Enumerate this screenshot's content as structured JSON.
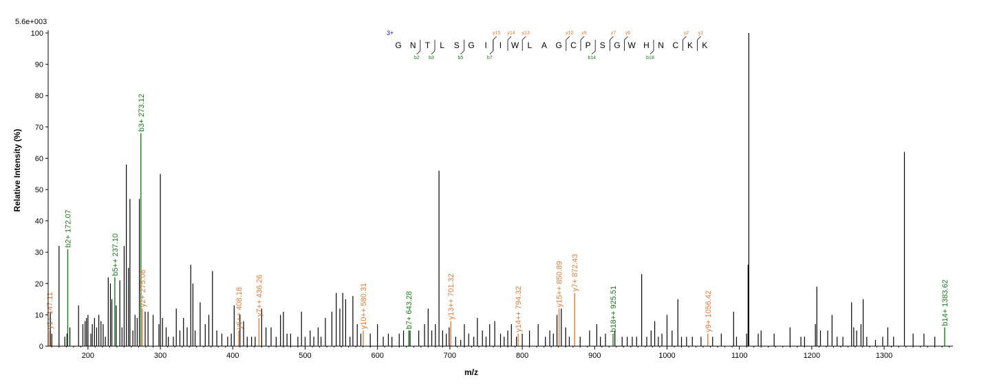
{
  "chart_data": {
    "type": "bar",
    "scale_label": "5.6e+003",
    "xlabel": "m/z",
    "ylabel": "Relative   Intensity (%)",
    "xlim": [
      145,
      1395
    ],
    "ylim": [
      0,
      100
    ],
    "x_ticks": [
      200,
      300,
      400,
      500,
      600,
      700,
      800,
      900,
      1000,
      1100,
      1200,
      1300
    ],
    "y_ticks": [
      0,
      10,
      20,
      30,
      40,
      50,
      60,
      70,
      80,
      90,
      100
    ],
    "colors": {
      "b_ion": "#1a7a1a",
      "y_ion": "#e07b39",
      "unannotated": "#000000",
      "charge": "#1010a0"
    },
    "peptide": {
      "charge": "3+",
      "sequence": [
        "G",
        "N",
        "T",
        "L",
        "S",
        "G",
        "I",
        "I",
        "W",
        "L",
        "A",
        "G",
        "C",
        "P",
        "S",
        "G",
        "W",
        "H",
        "N",
        "C",
        "K",
        "K"
      ],
      "b_marks": [
        {
          "label": "b2",
          "after": 2
        },
        {
          "label": "b3",
          "after": 3
        },
        {
          "label": "b5",
          "after": 5
        },
        {
          "label": "b7",
          "after": 7
        },
        {
          "label": "b14",
          "after": 14
        },
        {
          "label": "b18",
          "after": 18
        }
      ],
      "y_marks": [
        {
          "label": "y15",
          "after": 7
        },
        {
          "label": "y14",
          "after": 8
        },
        {
          "label": "y13",
          "after": 9
        },
        {
          "label": "y10",
          "after": 12
        },
        {
          "label": "y9",
          "after": 13
        },
        {
          "label": "y7",
          "after": 15
        },
        {
          "label": "y6",
          "after": 16
        },
        {
          "label": "y2",
          "after": 20
        },
        {
          "label": "y1",
          "after": 21
        }
      ]
    },
    "annotated_peaks": [
      {
        "mz": 147.11,
        "intensity": 5,
        "ion": "y",
        "label": "y1+ 147.11"
      },
      {
        "mz": 172.07,
        "intensity": 31,
        "ion": "b",
        "label": "b2+ 172.07"
      },
      {
        "mz": 237.1,
        "intensity": 22,
        "ion": "b",
        "label": "b5++ 237.10"
      },
      {
        "mz": 273.12,
        "intensity": 68,
        "ion": "b",
        "label": "b3+ 273.12"
      },
      {
        "mz": 275.08,
        "intensity": 12,
        "ion": "y",
        "label": "y2+ 275.08"
      },
      {
        "mz": 408.18,
        "intensity": 5,
        "ion": "y",
        "label": "y6++ 408.18"
      },
      {
        "mz": 436.26,
        "intensity": 9,
        "ion": "y",
        "label": "y7++ 436.26"
      },
      {
        "mz": 580.31,
        "intensity": 5,
        "ion": "y",
        "label": "y10++ 580.31"
      },
      {
        "mz": 643.28,
        "intensity": 5,
        "ion": "b",
        "label": "b7+ 643.28"
      },
      {
        "mz": 701.32,
        "intensity": 8,
        "ion": "y",
        "label": "y13++ 701.32"
      },
      {
        "mz": 794.32,
        "intensity": 4,
        "ion": "y",
        "label": "y14++ 794.32"
      },
      {
        "mz": 850.89,
        "intensity": 12,
        "ion": "y",
        "label": "y15++ 850.89"
      },
      {
        "mz": 872.43,
        "intensity": 17,
        "ion": "y",
        "label": "y7+ 872.43"
      },
      {
        "mz": 925.51,
        "intensity": 4,
        "ion": "b",
        "label": "b18++ 925.51"
      },
      {
        "mz": 1056.42,
        "intensity": 4,
        "ion": "y",
        "label": "y9+ 1056.42"
      },
      {
        "mz": 1383.62,
        "intensity": 6,
        "ion": "b",
        "label": "b14+ 1383.62"
      }
    ],
    "peaks": [
      [
        148,
        11
      ],
      [
        150,
        4
      ],
      [
        160,
        32
      ],
      [
        168,
        3
      ],
      [
        171,
        4
      ],
      [
        175,
        6
      ],
      [
        187,
        13
      ],
      [
        193,
        7
      ],
      [
        196,
        8
      ],
      [
        198,
        9
      ],
      [
        200,
        10
      ],
      [
        204,
        4
      ],
      [
        206,
        7
      ],
      [
        209,
        9
      ],
      [
        212,
        6
      ],
      [
        215,
        10
      ],
      [
        218,
        8
      ],
      [
        221,
        7
      ],
      [
        224,
        3
      ],
      [
        228,
        22
      ],
      [
        231,
        20
      ],
      [
        233,
        15
      ],
      [
        239,
        13
      ],
      [
        244,
        21
      ],
      [
        247,
        6
      ],
      [
        250,
        32
      ],
      [
        253,
        58
      ],
      [
        256,
        25
      ],
      [
        258,
        47
      ],
      [
        262,
        5
      ],
      [
        265,
        10
      ],
      [
        268,
        9
      ],
      [
        271,
        47
      ],
      [
        279,
        11
      ],
      [
        283,
        11
      ],
      [
        290,
        10
      ],
      [
        298,
        7
      ],
      [
        300,
        55
      ],
      [
        303,
        9
      ],
      [
        308,
        6
      ],
      [
        311,
        3
      ],
      [
        318,
        3
      ],
      [
        322,
        12
      ],
      [
        327,
        5
      ],
      [
        332,
        9
      ],
      [
        337,
        6
      ],
      [
        342,
        26
      ],
      [
        345,
        20
      ],
      [
        348,
        5
      ],
      [
        355,
        14
      ],
      [
        362,
        7
      ],
      [
        367,
        10
      ],
      [
        372,
        24
      ],
      [
        378,
        5
      ],
      [
        385,
        4
      ],
      [
        393,
        3
      ],
      [
        398,
        4
      ],
      [
        402,
        13
      ],
      [
        410,
        10
      ],
      [
        415,
        8
      ],
      [
        420,
        3
      ],
      [
        426,
        3
      ],
      [
        431,
        3
      ],
      [
        440,
        12
      ],
      [
        446,
        6
      ],
      [
        453,
        6
      ],
      [
        460,
        3
      ],
      [
        466,
        10
      ],
      [
        470,
        11
      ],
      [
        475,
        4
      ],
      [
        480,
        4
      ],
      [
        490,
        3
      ],
      [
        495,
        11
      ],
      [
        500,
        3
      ],
      [
        507,
        5
      ],
      [
        512,
        3
      ],
      [
        518,
        6
      ],
      [
        522,
        3
      ],
      [
        528,
        9
      ],
      [
        537,
        11
      ],
      [
        543,
        17
      ],
      [
        548,
        12
      ],
      [
        552,
        17
      ],
      [
        556,
        15
      ],
      [
        562,
        3
      ],
      [
        566,
        16
      ],
      [
        572,
        7
      ],
      [
        577,
        4
      ],
      [
        590,
        4
      ],
      [
        600,
        7
      ],
      [
        608,
        3
      ],
      [
        615,
        4
      ],
      [
        620,
        3
      ],
      [
        630,
        4
      ],
      [
        636,
        5
      ],
      [
        645,
        5
      ],
      [
        657,
        5
      ],
      [
        665,
        7
      ],
      [
        670,
        12
      ],
      [
        675,
        5
      ],
      [
        680,
        7
      ],
      [
        685,
        56
      ],
      [
        690,
        5
      ],
      [
        695,
        4
      ],
      [
        699,
        6
      ],
      [
        708,
        3
      ],
      [
        715,
        2
      ],
      [
        720,
        7
      ],
      [
        726,
        4
      ],
      [
        733,
        3
      ],
      [
        738,
        9
      ],
      [
        745,
        5
      ],
      [
        750,
        3
      ],
      [
        755,
        7
      ],
      [
        762,
        8
      ],
      [
        770,
        4
      ],
      [
        775,
        3
      ],
      [
        780,
        5
      ],
      [
        785,
        7
      ],
      [
        792,
        3
      ],
      [
        800,
        4
      ],
      [
        810,
        5
      ],
      [
        822,
        7
      ],
      [
        832,
        3
      ],
      [
        838,
        5
      ],
      [
        843,
        4
      ],
      [
        848,
        10
      ],
      [
        854,
        12
      ],
      [
        860,
        6
      ],
      [
        865,
        3
      ],
      [
        880,
        3
      ],
      [
        893,
        5
      ],
      [
        903,
        7
      ],
      [
        908,
        3
      ],
      [
        915,
        4
      ],
      [
        928,
        5
      ],
      [
        938,
        3
      ],
      [
        945,
        3
      ],
      [
        952,
        3
      ],
      [
        958,
        3
      ],
      [
        965,
        23
      ],
      [
        972,
        3
      ],
      [
        978,
        5
      ],
      [
        983,
        8
      ],
      [
        988,
        3
      ],
      [
        993,
        4
      ],
      [
        1000,
        10
      ],
      [
        1007,
        5
      ],
      [
        1015,
        15
      ],
      [
        1020,
        3
      ],
      [
        1027,
        3
      ],
      [
        1035,
        3
      ],
      [
        1047,
        3
      ],
      [
        1063,
        3
      ],
      [
        1075,
        4
      ],
      [
        1092,
        11
      ],
      [
        1096,
        3
      ],
      [
        1110,
        4
      ],
      [
        1112,
        26
      ],
      [
        1113,
        100
      ],
      [
        1126,
        4
      ],
      [
        1130,
        5
      ],
      [
        1148,
        4
      ],
      [
        1170,
        6
      ],
      [
        1185,
        3
      ],
      [
        1190,
        3
      ],
      [
        1205,
        7
      ],
      [
        1207,
        19
      ],
      [
        1212,
        5
      ],
      [
        1222,
        5
      ],
      [
        1228,
        10
      ],
      [
        1235,
        3
      ],
      [
        1243,
        3
      ],
      [
        1255,
        14
      ],
      [
        1258,
        6
      ],
      [
        1262,
        5
      ],
      [
        1268,
        7
      ],
      [
        1271,
        15
      ],
      [
        1276,
        3
      ],
      [
        1288,
        2
      ],
      [
        1298,
        3
      ],
      [
        1305,
        6
      ],
      [
        1313,
        3
      ],
      [
        1328,
        62
      ],
      [
        1340,
        4
      ],
      [
        1355,
        4
      ],
      [
        1370,
        3
      ]
    ]
  }
}
